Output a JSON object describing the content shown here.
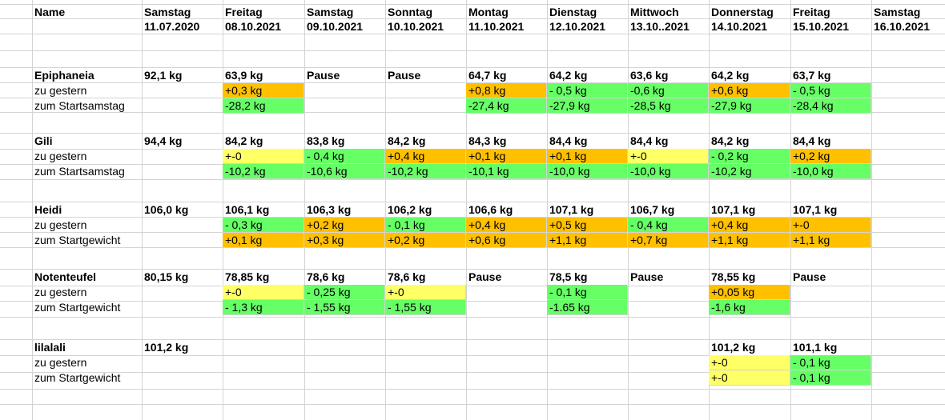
{
  "colors": {
    "increase": "#FFC000",
    "decrease": "#66FF66",
    "neutral": "#FFFF66"
  },
  "header": {
    "name_label": "Name",
    "days": [
      "Samstag",
      "Freitag",
      "Samstag",
      "Sonntag",
      "Montag",
      "Dienstag",
      "Mittwoch",
      "Donnerstag",
      "Freitag",
      "Samstag"
    ],
    "dates": [
      "11.07.2020",
      "08.10.2021",
      "09.10.2021",
      "10.10.2021",
      "11.10.2021",
      "12.10.2021",
      "13.10..2021",
      "14.10.2021",
      "15.10.2021",
      "16.10.2021"
    ]
  },
  "people": [
    {
      "name": "Epiphaneia",
      "weights": [
        "92,1 kg",
        "63,9 kg",
        "Pause",
        "Pause",
        "64,7 kg",
        "64,2 kg",
        "63,6 kg",
        "64,2 kg",
        "63,7 kg",
        ""
      ],
      "rows": [
        {
          "label": "zu gestern",
          "cells": [
            {
              "v": "",
              "c": ""
            },
            {
              "v": "+0,3 kg",
              "c": "orange"
            },
            {
              "v": "",
              "c": ""
            },
            {
              "v": "",
              "c": ""
            },
            {
              "v": "+0,8 kg",
              "c": "orange"
            },
            {
              "v": "- 0,5 kg",
              "c": "green"
            },
            {
              "v": "-0,6 kg",
              "c": "green"
            },
            {
              "v": "+0,6 kg",
              "c": "orange"
            },
            {
              "v": "- 0,5 kg",
              "c": "green"
            },
            {
              "v": "",
              "c": ""
            }
          ]
        },
        {
          "label": "zum Startsamstag",
          "cells": [
            {
              "v": "",
              "c": ""
            },
            {
              "v": "-28,2 kg",
              "c": "green"
            },
            {
              "v": "",
              "c": ""
            },
            {
              "v": "",
              "c": ""
            },
            {
              "v": "-27,4 kg",
              "c": "green"
            },
            {
              "v": "-27,9 kg",
              "c": "green"
            },
            {
              "v": "-28,5 kg",
              "c": "green"
            },
            {
              "v": "-27,9 kg",
              "c": "green"
            },
            {
              "v": "-28,4 kg",
              "c": "green"
            },
            {
              "v": "",
              "c": ""
            }
          ]
        }
      ]
    },
    {
      "name": "Gili",
      "weights": [
        "94,4 kg",
        "84,2 kg",
        "83,8 kg",
        "84,2 kg",
        "84,3 kg",
        "84,4 kg",
        "84,4 kg",
        "84,2 kg",
        "84,4 kg",
        ""
      ],
      "rows": [
        {
          "label": "zu gestern",
          "cells": [
            {
              "v": "",
              "c": ""
            },
            {
              "v": "+-0",
              "c": "yellow"
            },
            {
              "v": "- 0,4 kg",
              "c": "green"
            },
            {
              "v": "+0,4 kg",
              "c": "orange"
            },
            {
              "v": "+0,1 kg",
              "c": "orange"
            },
            {
              "v": "+0,1 kg",
              "c": "orange"
            },
            {
              "v": "+-0",
              "c": "yellow"
            },
            {
              "v": "- 0,2 kg",
              "c": "green"
            },
            {
              "v": "+0,2 kg",
              "c": "orange"
            },
            {
              "v": "",
              "c": ""
            }
          ]
        },
        {
          "label": "zum Startsamstag",
          "cells": [
            {
              "v": "",
              "c": ""
            },
            {
              "v": "-10,2 kg",
              "c": "green"
            },
            {
              "v": "-10,6 kg",
              "c": "green"
            },
            {
              "v": "-10,2 kg",
              "c": "green"
            },
            {
              "v": "-10,1 kg",
              "c": "green"
            },
            {
              "v": "-10,0 kg",
              "c": "green"
            },
            {
              "v": "-10,0 kg",
              "c": "green"
            },
            {
              "v": "-10,2 kg",
              "c": "green"
            },
            {
              "v": "-10,0 kg",
              "c": "green"
            },
            {
              "v": "",
              "c": ""
            }
          ]
        }
      ]
    },
    {
      "name": "Heidi",
      "weights": [
        "106,0 kg",
        "106,1 kg",
        "106,3 kg",
        "106,2 kg",
        "106,6 kg",
        "107,1 kg",
        "106,7 kg",
        "107,1 kg",
        "107,1 kg",
        ""
      ],
      "rows": [
        {
          "label": "zu gestern",
          "cells": [
            {
              "v": "",
              "c": ""
            },
            {
              "v": "- 0,3 kg",
              "c": "green"
            },
            {
              "v": "+0,2 kg",
              "c": "orange"
            },
            {
              "v": "- 0,1 kg",
              "c": "green"
            },
            {
              "v": "+0,4 kg",
              "c": "orange"
            },
            {
              "v": "+0,5 kg",
              "c": "orange"
            },
            {
              "v": "- 0,4 kg",
              "c": "green"
            },
            {
              "v": "+0,4 kg",
              "c": "orange"
            },
            {
              "v": "+-0",
              "c": "orange"
            },
            {
              "v": "",
              "c": ""
            }
          ]
        },
        {
          "label": "zum Startgewicht",
          "cells": [
            {
              "v": "",
              "c": ""
            },
            {
              "v": "+0,1 kg",
              "c": "orange"
            },
            {
              "v": "+0,3 kg",
              "c": "orange"
            },
            {
              "v": "+0,2 kg",
              "c": "orange"
            },
            {
              "v": "+0,6 kg",
              "c": "orange"
            },
            {
              "v": "+1,1 kg",
              "c": "orange"
            },
            {
              "v": "+0,7 kg",
              "c": "orange"
            },
            {
              "v": "+1,1 kg",
              "c": "orange"
            },
            {
              "v": "+1,1 kg",
              "c": "orange"
            },
            {
              "v": "",
              "c": ""
            }
          ]
        }
      ]
    },
    {
      "name": "Notenteufel",
      "weights": [
        "80,15 kg",
        "78,85 kg",
        "78,6 kg",
        "78,6 kg",
        "Pause",
        "78,5 kg",
        "Pause",
        "78,55 kg",
        "Pause",
        ""
      ],
      "rows": [
        {
          "label": "zu gestern",
          "cells": [
            {
              "v": "",
              "c": ""
            },
            {
              "v": "+-0",
              "c": "yellow"
            },
            {
              "v": "- 0,25 kg",
              "c": "green"
            },
            {
              "v": "+-0",
              "c": "yellow"
            },
            {
              "v": "",
              "c": ""
            },
            {
              "v": "- 0,1 kg",
              "c": "green"
            },
            {
              "v": "",
              "c": ""
            },
            {
              "v": "+0,05 kg",
              "c": "orange"
            },
            {
              "v": "",
              "c": ""
            },
            {
              "v": "",
              "c": ""
            }
          ]
        },
        {
          "label": "zum Startgewicht",
          "cells": [
            {
              "v": "",
              "c": ""
            },
            {
              "v": "- 1,3 kg",
              "c": "green"
            },
            {
              "v": "- 1,55 kg",
              "c": "green"
            },
            {
              "v": "- 1,55 kg",
              "c": "green"
            },
            {
              "v": "",
              "c": ""
            },
            {
              "v": "-1.65 kg",
              "c": "green"
            },
            {
              "v": "",
              "c": ""
            },
            {
              "v": "-1,6 kg",
              "c": "green"
            },
            {
              "v": "",
              "c": ""
            },
            {
              "v": "",
              "c": ""
            }
          ]
        }
      ]
    },
    {
      "name": "lilalali",
      "weights": [
        "101,2 kg",
        "",
        "",
        "",
        "",
        "",
        "",
        "101,2 kg",
        "101,1 kg",
        ""
      ],
      "rows": [
        {
          "label": "zu gestern",
          "cells": [
            {
              "v": "",
              "c": ""
            },
            {
              "v": "",
              "c": ""
            },
            {
              "v": "",
              "c": ""
            },
            {
              "v": "",
              "c": ""
            },
            {
              "v": "",
              "c": ""
            },
            {
              "v": "",
              "c": ""
            },
            {
              "v": "",
              "c": ""
            },
            {
              "v": "+-0",
              "c": "yellow"
            },
            {
              "v": "- 0,1 kg",
              "c": "green"
            },
            {
              "v": "",
              "c": ""
            }
          ]
        },
        {
          "label": "zum Startgewicht",
          "cells": [
            {
              "v": "",
              "c": ""
            },
            {
              "v": "",
              "c": ""
            },
            {
              "v": "",
              "c": ""
            },
            {
              "v": "",
              "c": ""
            },
            {
              "v": "",
              "c": ""
            },
            {
              "v": "",
              "c": ""
            },
            {
              "v": "",
              "c": ""
            },
            {
              "v": "+-0",
              "c": "yellow"
            },
            {
              "v": "- 0,1 kg",
              "c": "green"
            },
            {
              "v": "",
              "c": ""
            }
          ]
        }
      ]
    }
  ]
}
